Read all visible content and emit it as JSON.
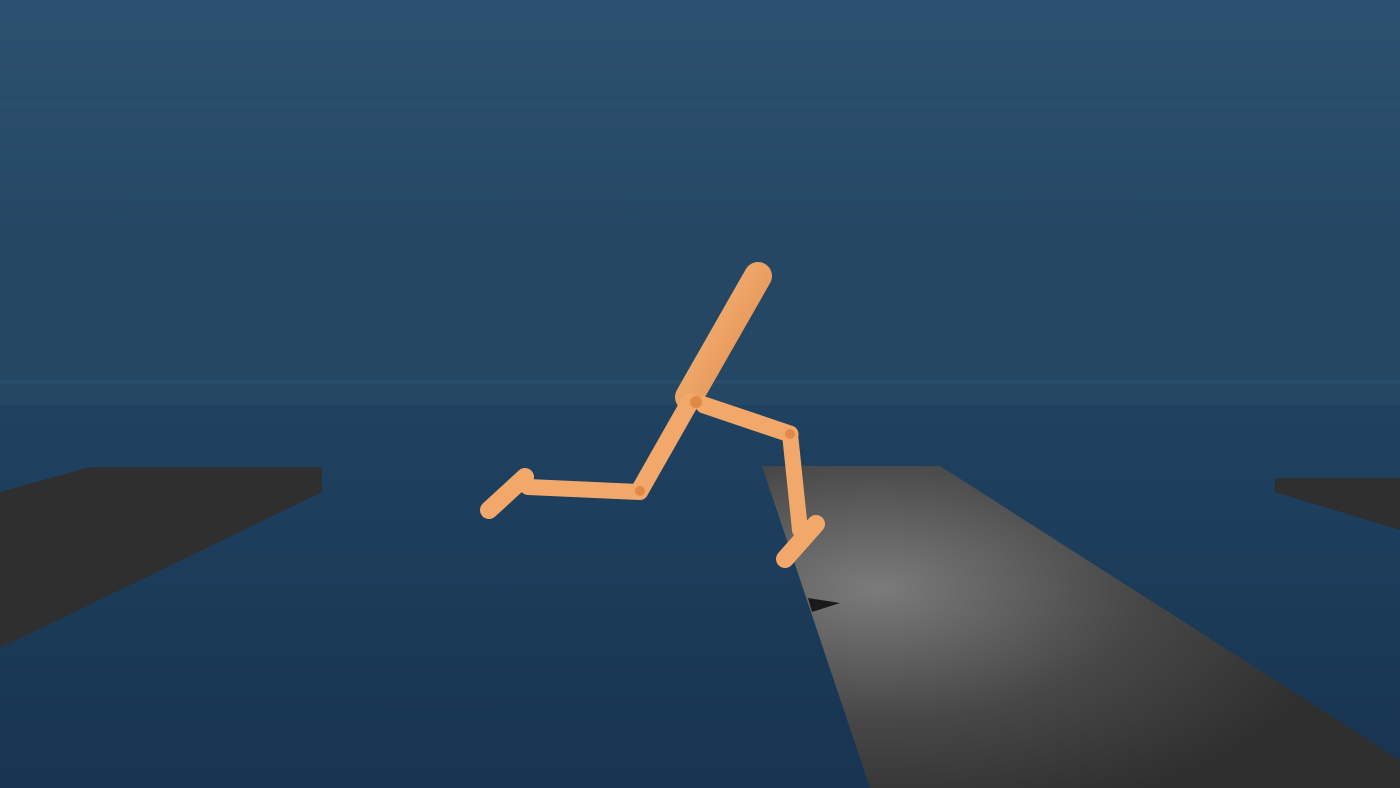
{
  "scene": {
    "environment": "physics-simulation-viewer",
    "agent": "bipedal-walker",
    "colors": {
      "sky_top": "#2c5170",
      "sky_mid": "#244864",
      "floor_far": "#1f4260",
      "floor_near": "#173452",
      "platform": "#2f2f2f",
      "platform_highlight": "#7b7b7b",
      "body": "#f3a86b",
      "body_shade": "#e08a48",
      "shadow": "#1a1a1a"
    }
  }
}
